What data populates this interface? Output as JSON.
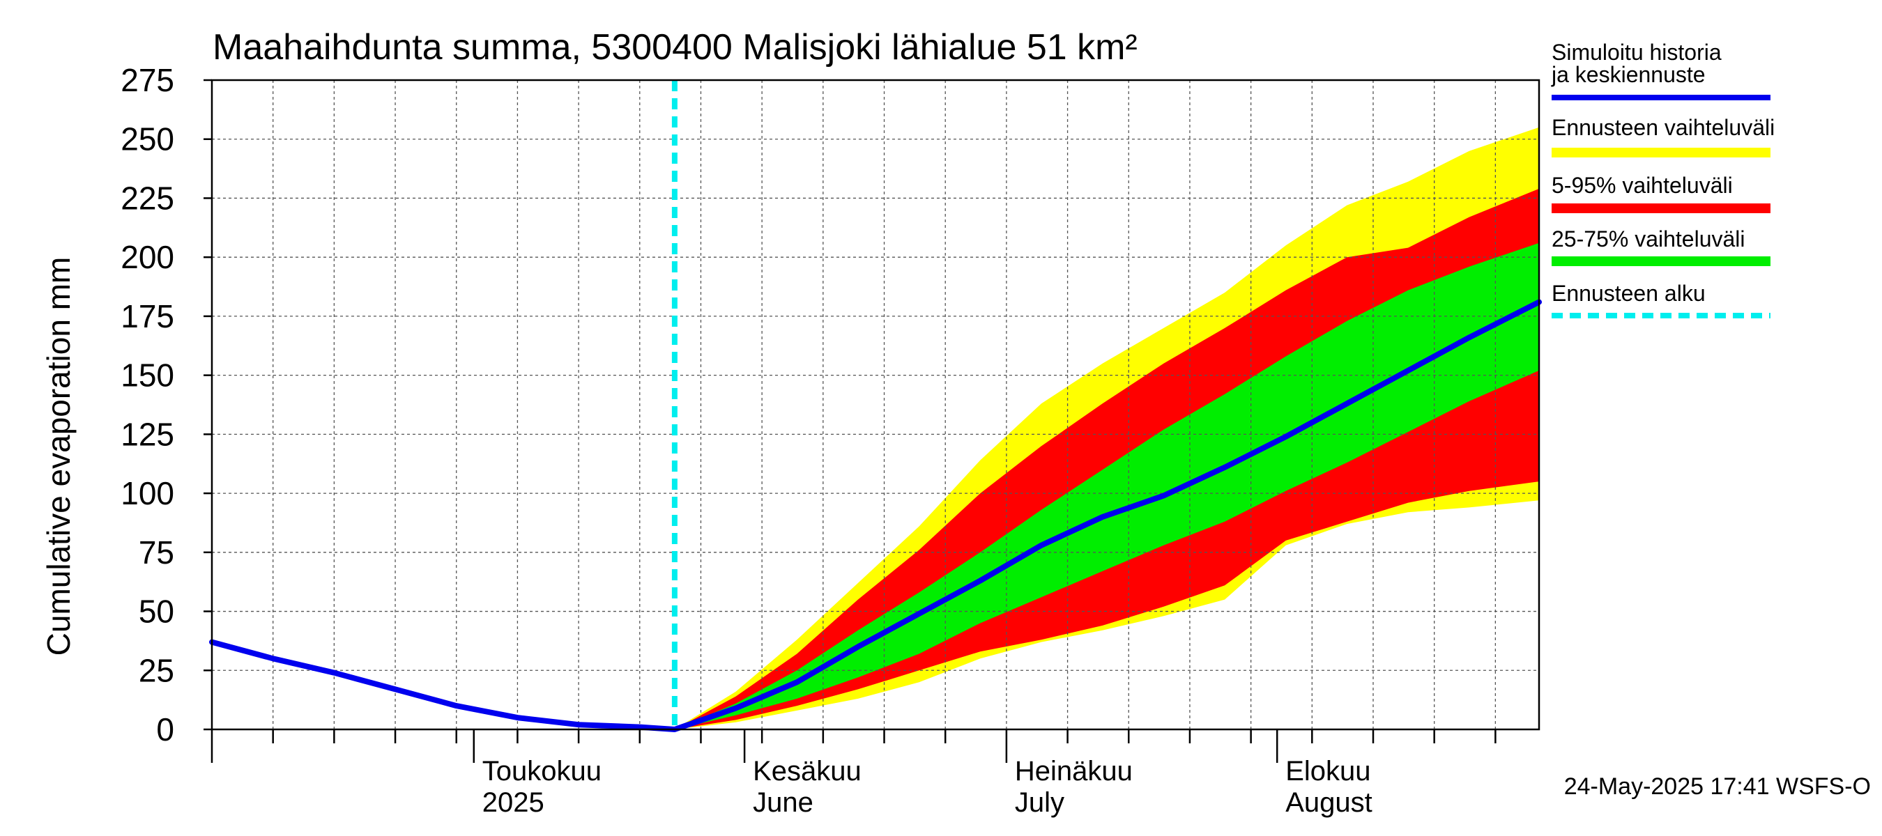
{
  "chart_data": {
    "type": "area",
    "title": "Maahaihdunta summa, 5300400 Malisjoki lähialue 51 km²",
    "ylabel": "Cumulative evaporation   mm",
    "xlabel": "",
    "ylim": [
      0,
      275
    ],
    "yticks": [
      0,
      25,
      50,
      75,
      100,
      125,
      150,
      175,
      200,
      225,
      250,
      275
    ],
    "xlim": [
      "2025-04-01",
      "2025-08-31"
    ],
    "grid": true,
    "forecast_start": "2025-05-24",
    "x_ticks": [
      {
        "date": "2025-05-01",
        "line1": "Toukokuu",
        "line2": "2025"
      },
      {
        "date": "2025-06-01",
        "line1": "Kesäkuu",
        "line2": "June"
      },
      {
        "date": "2025-07-01",
        "line1": "Heinäkuu",
        "line2": "July"
      },
      {
        "date": "2025-08-01",
        "line1": "Elokuu",
        "line2": "August"
      }
    ],
    "legend": {
      "placement": "right",
      "entries": [
        {
          "label": "Simuloitu historia ja keskiennuste",
          "color": "#0000ee",
          "style": "line"
        },
        {
          "label": "Ennusteen vaihteluväli",
          "color": "#ffff00",
          "style": "band"
        },
        {
          "label": "5-95% vaihteluväli",
          "color": "#ff0000",
          "style": "band"
        },
        {
          "label": "25-75% vaihteluväli",
          "color": "#00ee00",
          "style": "band"
        },
        {
          "label": "Ennusteen alku",
          "color": "#00eeee",
          "style": "dashed"
        }
      ]
    },
    "history": {
      "x": [
        "2025-04-01",
        "2025-04-08",
        "2025-04-15",
        "2025-04-22",
        "2025-04-29",
        "2025-05-06",
        "2025-05-13",
        "2025-05-20",
        "2025-05-24"
      ],
      "values": [
        37,
        30,
        24,
        17,
        10,
        5,
        2,
        1,
        0
      ]
    },
    "forecast": {
      "x": [
        "2025-05-24",
        "2025-05-31",
        "2025-06-07",
        "2025-06-14",
        "2025-06-21",
        "2025-06-28",
        "2025-07-05",
        "2025-07-12",
        "2025-07-19",
        "2025-07-26",
        "2025-08-02",
        "2025-08-09",
        "2025-08-16",
        "2025-08-23",
        "2025-08-31"
      ],
      "median": [
        0,
        9,
        20,
        35,
        49,
        63,
        78,
        90,
        99,
        111,
        124,
        138,
        152,
        166,
        181
      ],
      "p25": [
        0,
        6,
        13,
        22,
        32,
        45,
        56,
        67,
        78,
        88,
        101,
        113,
        126,
        139,
        152
      ],
      "p75": [
        0,
        11,
        25,
        42,
        58,
        75,
        93,
        110,
        127,
        142,
        158,
        173,
        186,
        196,
        206
      ],
      "p5": [
        0,
        4,
        10,
        17,
        25,
        33,
        38,
        44,
        52,
        61,
        80,
        88,
        96,
        101,
        105
      ],
      "p95": [
        0,
        14,
        32,
        55,
        76,
        100,
        120,
        138,
        155,
        170,
        186,
        200,
        204,
        217,
        229
      ],
      "min": [
        0,
        3,
        8,
        13,
        20,
        30,
        37,
        42,
        48,
        55,
        78,
        87,
        92,
        94,
        97
      ],
      "max": [
        0,
        16,
        38,
        62,
        86,
        114,
        138,
        155,
        170,
        185,
        205,
        222,
        232,
        245,
        255
      ]
    }
  },
  "footer": {
    "timestamp": "24-May-2025 17:41 WSFS-O"
  }
}
